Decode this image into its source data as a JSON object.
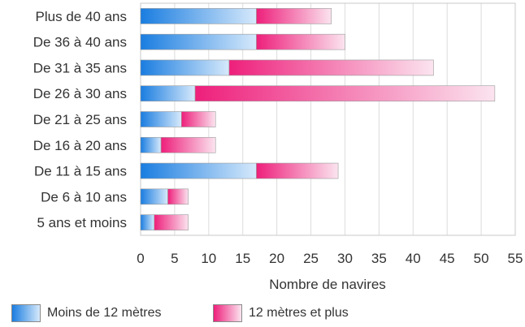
{
  "chart_data": {
    "type": "bar",
    "orientation": "horizontal",
    "stacked": true,
    "categories": [
      "Plus de 40 ans",
      "De 36 à 40 ans",
      "De 31 à 35 ans",
      "De 26 à 30 ans",
      "De 21 à 25 ans",
      "De 16 à 20 ans",
      "De 11 à 15 ans",
      "De 6 à 10 ans",
      "5 ans et moins"
    ],
    "series": [
      {
        "name": "Moins de 12 mètres",
        "values": [
          17,
          17,
          13,
          8,
          6,
          3,
          17,
          4,
          2
        ],
        "color": "#1a7de0"
      },
      {
        "name": "12 mètres et plus",
        "values": [
          11,
          13,
          30,
          44,
          5,
          8,
          12,
          3,
          5
        ],
        "color": "#ee1f7b"
      }
    ],
    "xlabel": "Nombre de navires",
    "ylabel": "",
    "xlim": [
      0,
      55
    ],
    "xticks": [
      "0",
      "5",
      "10",
      "15",
      "20",
      "25",
      "30",
      "35",
      "40",
      "45",
      "50",
      "55"
    ],
    "grid": true,
    "legend_position": "bottom-left"
  }
}
